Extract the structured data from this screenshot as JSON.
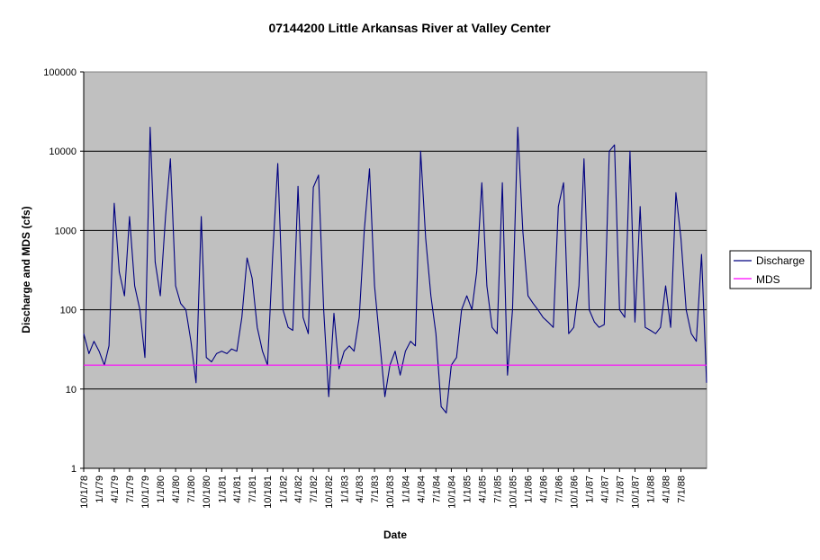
{
  "chart_data": {
    "type": "line",
    "title": "07144200 Little Arkansas River at Valley Center",
    "xlabel": "Date",
    "ylabel": "Discharge and MDS (cfs)",
    "y_scale": "log",
    "ylim": [
      1,
      100000
    ],
    "y_ticks": [
      "1",
      "10",
      "100",
      "1000",
      "10000",
      "100000"
    ],
    "x_ticks": [
      "10/1/78",
      "1/1/79",
      "4/1/79",
      "7/1/79",
      "10/1/79",
      "1/1/80",
      "4/1/80",
      "7/1/80",
      "10/1/80",
      "1/1/81",
      "4/1/81",
      "7/1/81",
      "10/1/81",
      "1/1/82",
      "4/1/82",
      "7/1/82",
      "10/1/82",
      "1/1/83",
      "4/1/83",
      "7/1/83",
      "10/1/83",
      "1/1/84",
      "4/1/84",
      "7/1/84",
      "10/1/84",
      "1/1/85",
      "4/1/85",
      "7/1/85",
      "10/1/85",
      "1/1/86",
      "4/1/86",
      "7/1/86",
      "10/1/86",
      "1/1/87",
      "4/1/87",
      "7/1/87",
      "10/1/87",
      "1/1/88",
      "4/1/88",
      "7/1/88"
    ],
    "xlim": [
      "10/1/78",
      "12/1/88"
    ],
    "grid": "horizontal major gridlines",
    "plot_background": "#c0c0c0",
    "legend_position": "right",
    "series": [
      {
        "name": "Discharge",
        "color": "#000080",
        "x": [
          "10/1/78",
          "11/1/78",
          "12/1/78",
          "1/1/79",
          "2/1/79",
          "3/1/79",
          "4/1/79",
          "5/1/79",
          "6/1/79",
          "7/1/79",
          "8/1/79",
          "9/1/79",
          "10/1/79",
          "11/1/79",
          "12/1/79",
          "1/1/80",
          "2/1/80",
          "3/1/80",
          "4/1/80",
          "5/1/80",
          "6/1/80",
          "7/1/80",
          "8/1/80",
          "9/1/80",
          "10/1/80",
          "11/1/80",
          "12/1/80",
          "1/1/81",
          "2/1/81",
          "3/1/81",
          "4/1/81",
          "5/1/81",
          "6/1/81",
          "7/1/81",
          "8/1/81",
          "9/1/81",
          "10/1/81",
          "11/1/81",
          "12/1/81",
          "1/1/82",
          "2/1/82",
          "3/1/82",
          "4/1/82",
          "5/1/82",
          "6/1/82",
          "7/1/82",
          "8/1/82",
          "9/1/82",
          "10/1/82",
          "11/1/82",
          "12/1/82",
          "1/1/83",
          "2/1/83",
          "3/1/83",
          "4/1/83",
          "5/1/83",
          "6/1/83",
          "7/1/83",
          "8/1/83",
          "9/1/83",
          "10/1/83",
          "11/1/83",
          "12/1/83",
          "1/1/84",
          "2/1/84",
          "3/1/84",
          "4/1/84",
          "5/1/84",
          "6/1/84",
          "7/1/84",
          "8/1/84",
          "9/1/84",
          "10/1/84",
          "11/1/84",
          "12/1/84",
          "1/1/85",
          "2/1/85",
          "3/1/85",
          "4/1/85",
          "5/1/85",
          "6/1/85",
          "7/1/85",
          "8/1/85",
          "9/1/85",
          "10/1/85",
          "11/1/85",
          "12/1/85",
          "1/1/86",
          "2/1/86",
          "3/1/86",
          "4/1/86",
          "5/1/86",
          "6/1/86",
          "7/1/86",
          "8/1/86",
          "9/1/86",
          "10/1/86",
          "11/1/86",
          "12/1/86",
          "1/1/87",
          "2/1/87",
          "3/1/87",
          "4/1/87",
          "5/1/87",
          "6/1/87",
          "7/1/87",
          "8/1/87",
          "9/1/87",
          "10/1/87",
          "11/1/87",
          "12/1/87",
          "1/1/88",
          "2/1/88",
          "3/1/88",
          "4/1/88",
          "5/1/88",
          "6/1/88",
          "7/1/88",
          "8/1/88",
          "9/1/88",
          "10/1/88",
          "11/1/88",
          "12/1/88"
        ],
        "y": [
          50,
          28,
          40,
          30,
          20,
          35,
          2200,
          300,
          150,
          1500,
          200,
          100,
          25,
          20000,
          400,
          150,
          1500,
          8000,
          200,
          120,
          100,
          40,
          12,
          1500,
          25,
          22,
          28,
          30,
          28,
          32,
          30,
          80,
          450,
          250,
          60,
          30,
          20,
          500,
          7000,
          100,
          60,
          55,
          3600,
          80,
          50,
          3500,
          5000,
          100,
          8,
          90,
          18,
          30,
          35,
          30,
          80,
          1000,
          6000,
          200,
          40,
          8,
          20,
          30,
          15,
          30,
          40,
          35,
          10000,
          800,
          150,
          50,
          6,
          5,
          20,
          25,
          100,
          150,
          100,
          300,
          4000,
          200,
          60,
          50,
          4000,
          15,
          100,
          20000,
          1000,
          150,
          120,
          100,
          80,
          70,
          60,
          2000,
          4000,
          50,
          60,
          200,
          8000,
          100,
          70,
          60,
          65,
          10000,
          12000,
          100,
          80,
          10000,
          70,
          2000,
          60,
          55,
          50,
          60,
          200,
          60,
          3000,
          800,
          100,
          50,
          40,
          500,
          12
        ]
      },
      {
        "name": "MDS",
        "color": "#ff00ff",
        "x": [
          "10/1/78",
          "12/1/88"
        ],
        "y": [
          20,
          20
        ]
      }
    ]
  }
}
